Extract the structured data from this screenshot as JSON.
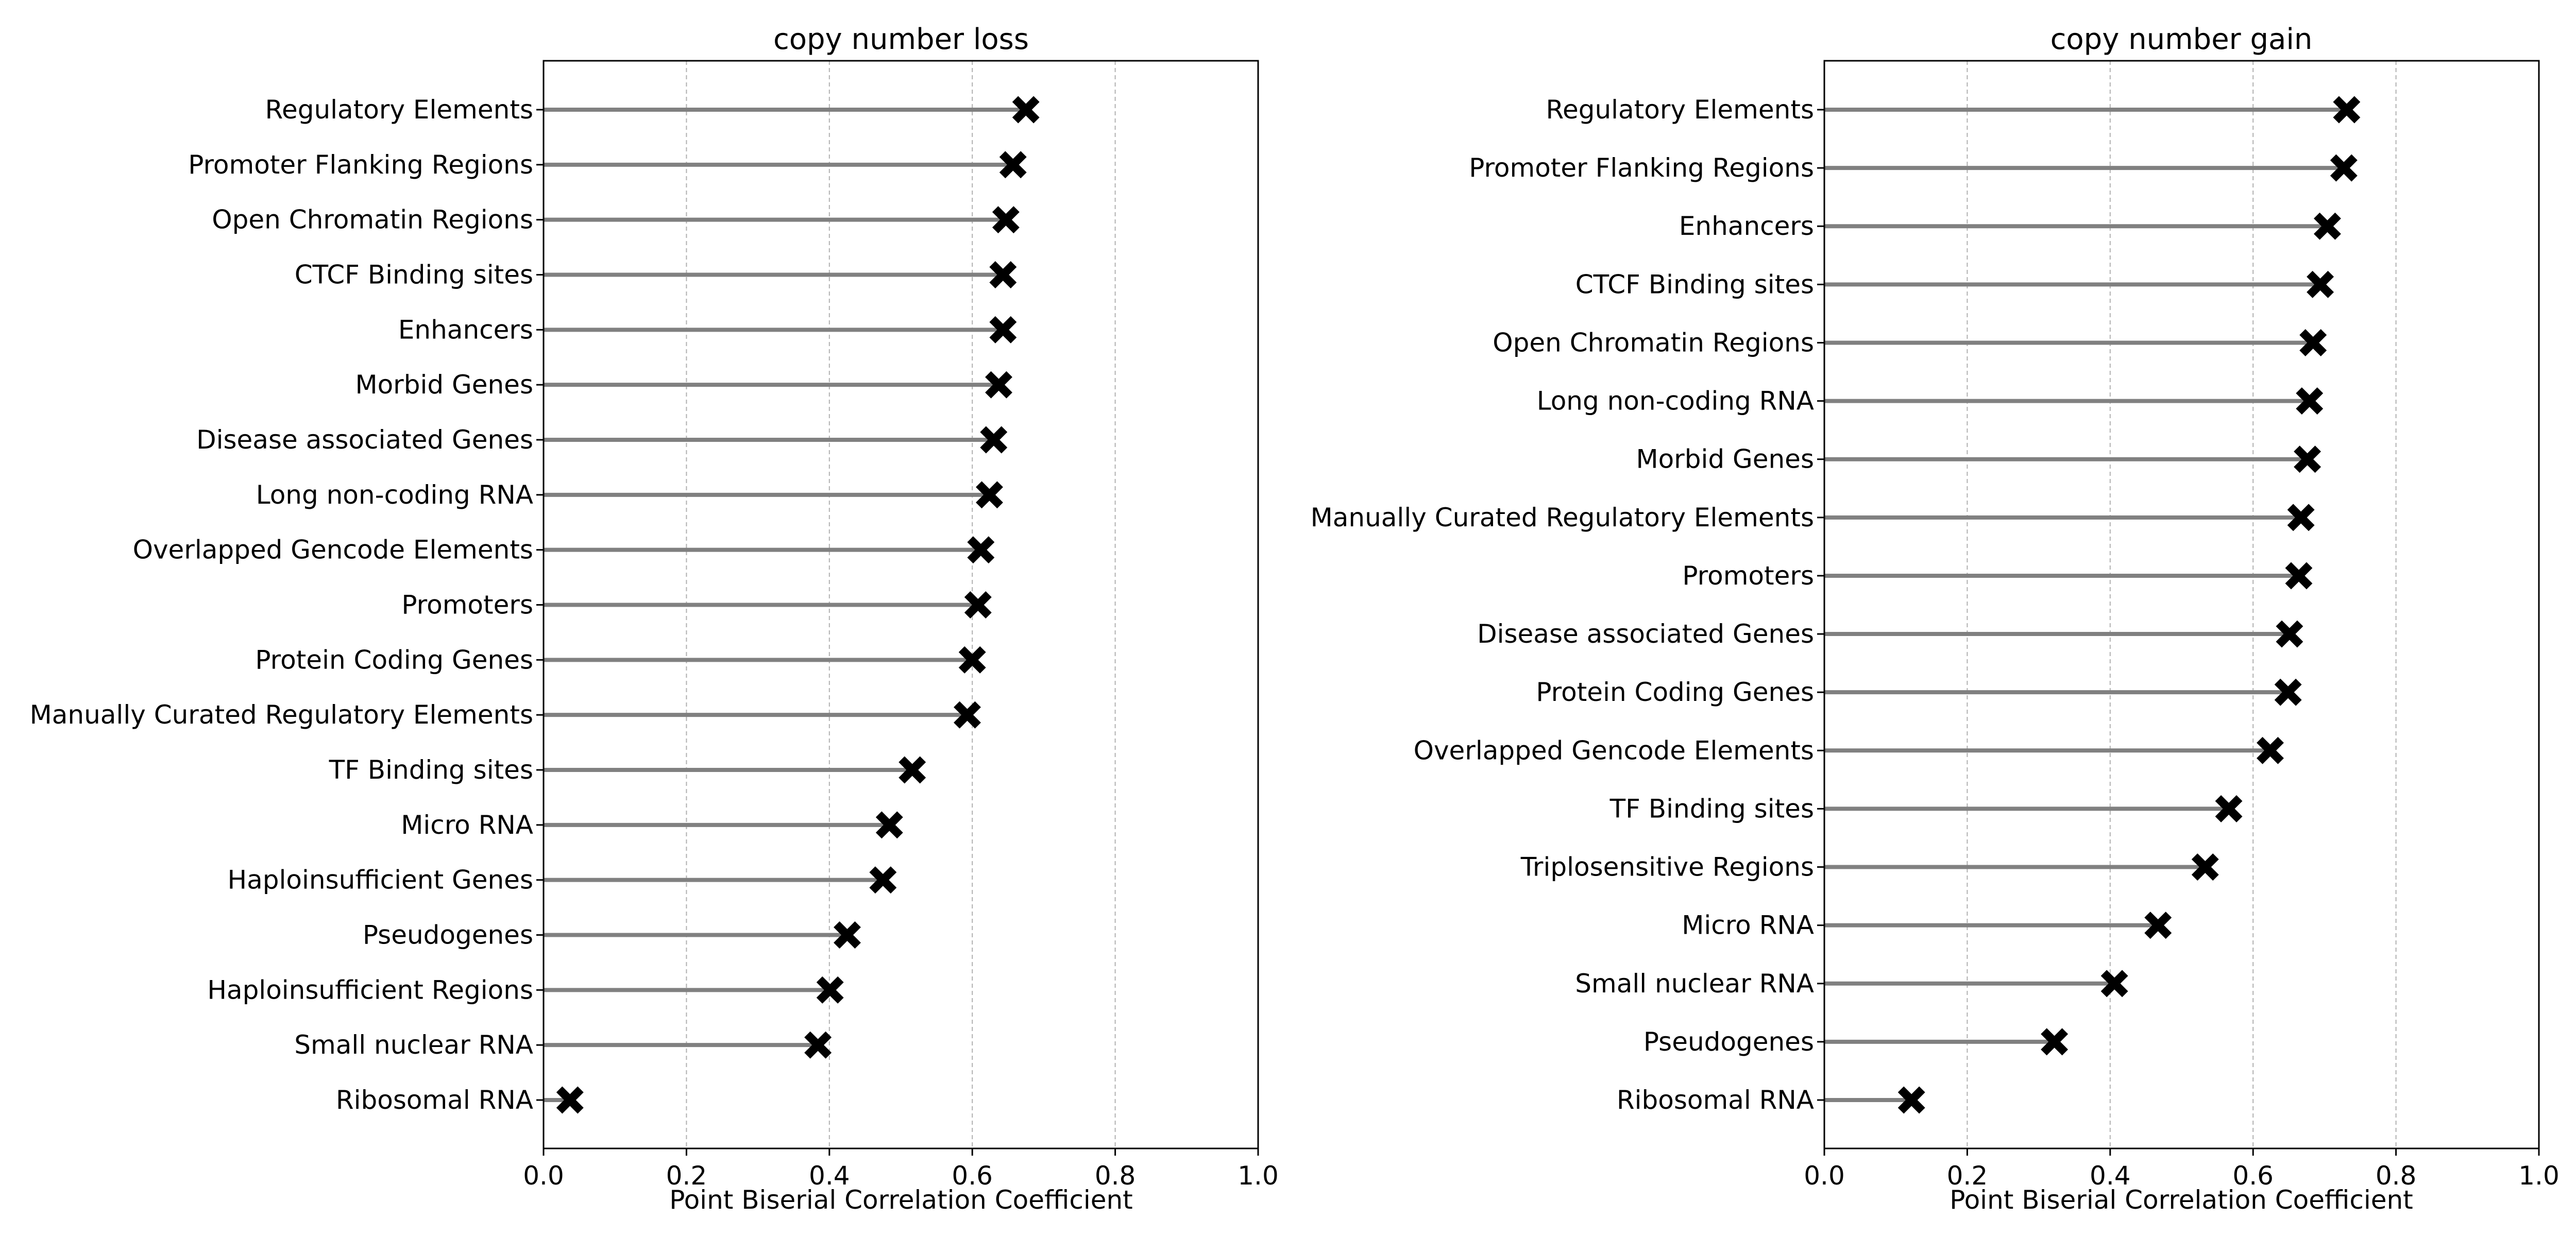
{
  "chart_data": [
    {
      "type": "lollipop",
      "title": "copy number loss",
      "xlabel": "Point Biserial Correlation Coefficient",
      "ylabel": "",
      "xlim": [
        0.0,
        1.0
      ],
      "xticks": [
        "0.0",
        "0.2",
        "0.4",
        "0.6",
        "0.8",
        "1.0"
      ],
      "grid": "x, dashed",
      "marker": "X",
      "categories": [
        "Regulatory Elements",
        "Promoter Flanking Regions",
        "Open Chromatin Regions",
        "CTCF Binding sites",
        "Enhancers",
        "Morbid Genes",
        "Disease associated Genes",
        "Long non-coding RNA",
        "Overlapped Gencode Elements",
        "Promoters",
        "Protein Coding Genes",
        "Manually Curated Regulatory Elements",
        "TF Binding sites",
        "Micro RNA",
        "Haploinsufficient Genes",
        "Pseudogenes",
        "Haploinsufficient Regions",
        "Small nuclear RNA",
        "Ribosomal RNA"
      ],
      "values": [
        0.675,
        0.657,
        0.647,
        0.643,
        0.643,
        0.637,
        0.63,
        0.624,
        0.612,
        0.608,
        0.6,
        0.593,
        0.516,
        0.484,
        0.475,
        0.425,
        0.401,
        0.384,
        0.037
      ]
    },
    {
      "type": "lollipop",
      "title": "copy number gain",
      "xlabel": "Point Biserial Correlation Coefficient",
      "ylabel": "",
      "xlim": [
        0.0,
        1.0
      ],
      "xticks": [
        "0.0",
        "0.2",
        "0.4",
        "0.6",
        "0.8",
        "1.0"
      ],
      "grid": "x, dashed",
      "marker": "X",
      "categories": [
        "Regulatory Elements",
        "Promoter Flanking Regions",
        "Enhancers",
        "CTCF Binding sites",
        "Open Chromatin Regions",
        "Long non-coding RNA",
        "Morbid Genes",
        "Manually Curated Regulatory Elements",
        "Promoters",
        "Disease associated Genes",
        "Protein Coding Genes",
        "Overlapped Gencode Elements",
        "TF Binding sites",
        "Triplosensitive Regions",
        "Micro RNA",
        "Small nuclear RNA",
        "Pseudogenes",
        "Ribosomal RNA"
      ],
      "values": [
        0.731,
        0.727,
        0.704,
        0.694,
        0.684,
        0.679,
        0.676,
        0.667,
        0.664,
        0.651,
        0.649,
        0.624,
        0.566,
        0.533,
        0.467,
        0.406,
        0.322,
        0.122
      ]
    }
  ],
  "colors": {
    "stem": "#808080",
    "marker": "#000000",
    "grid": "#b0b0b0",
    "axes": "#000000"
  }
}
